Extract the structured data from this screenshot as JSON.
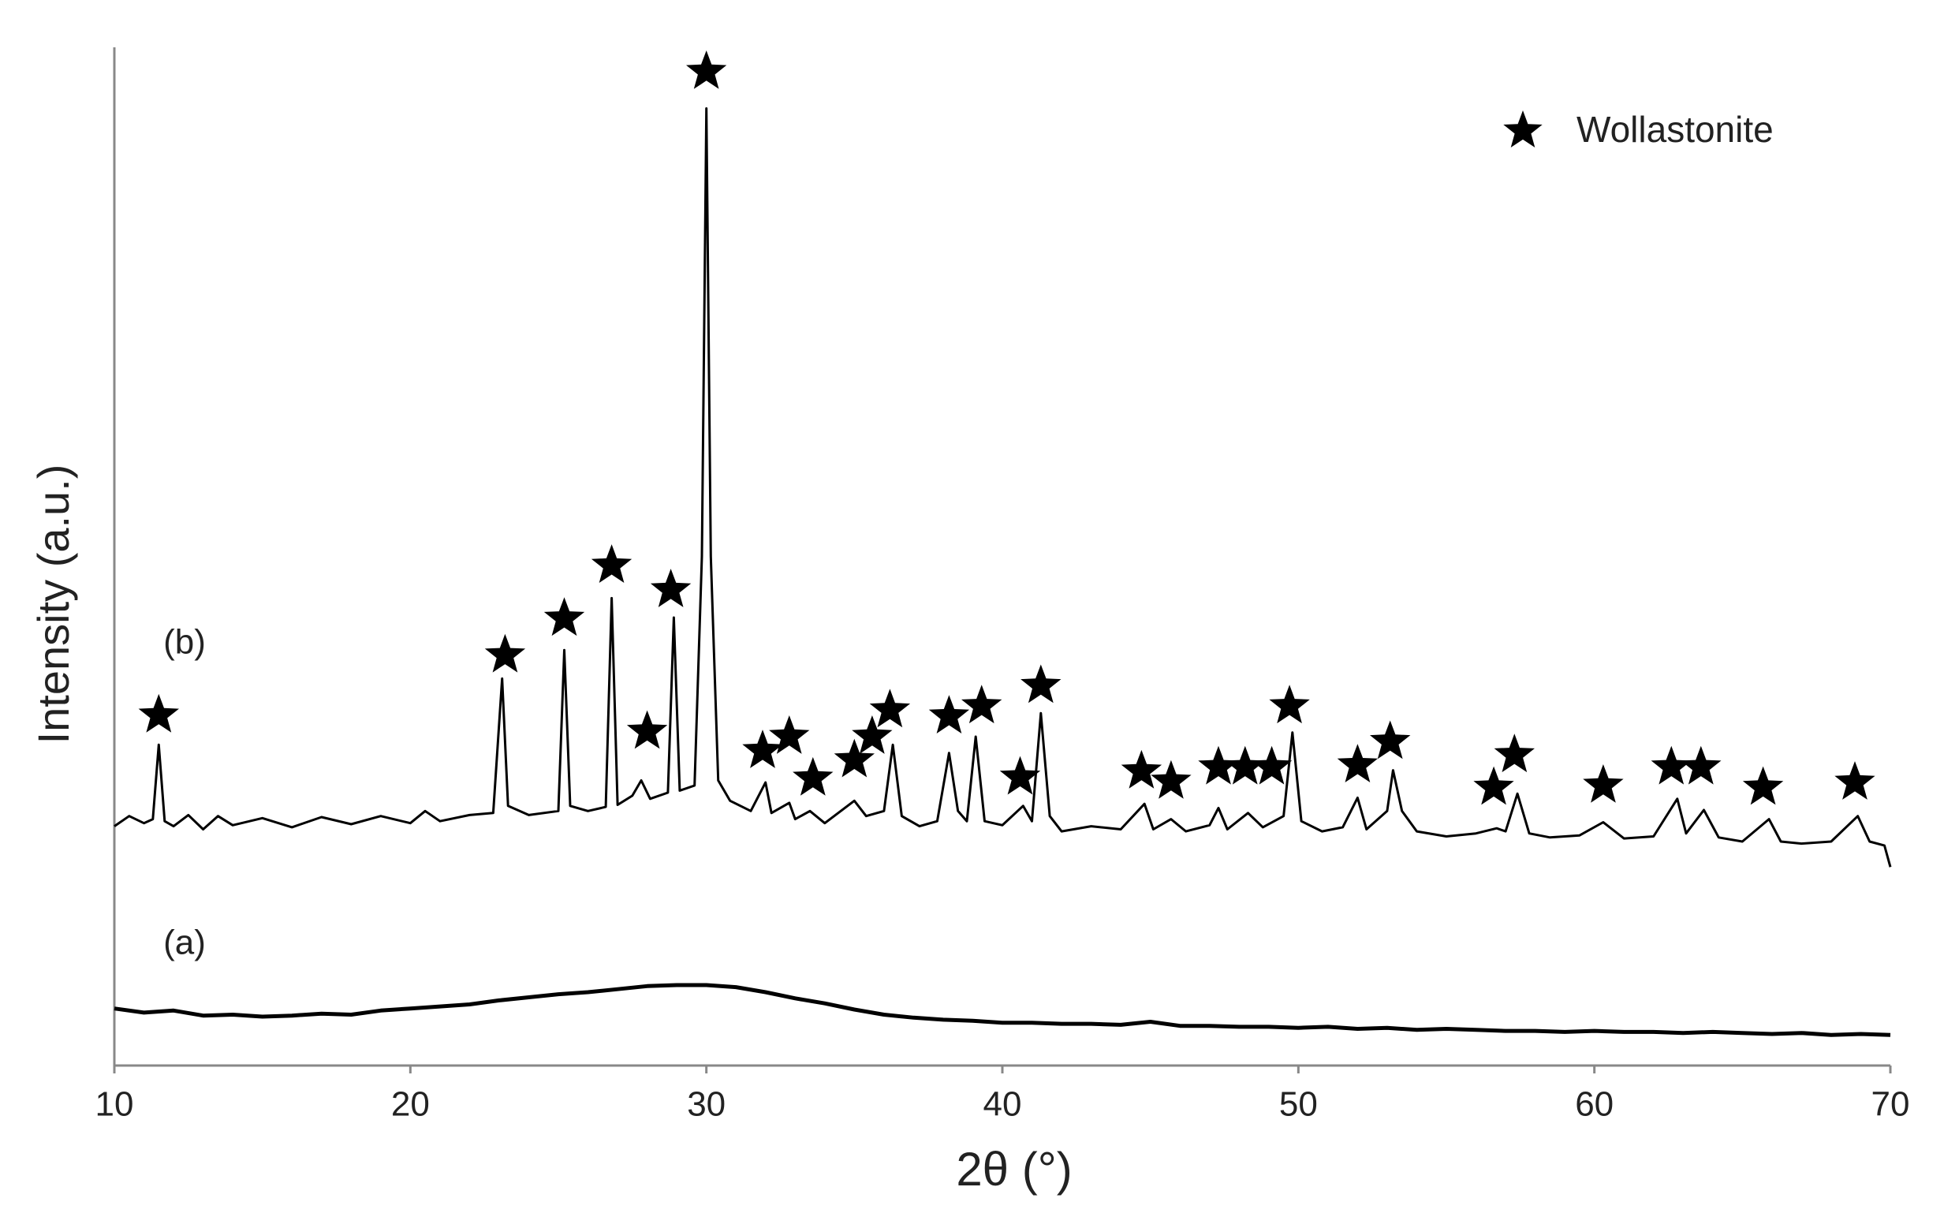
{
  "chart_data": {
    "type": "line",
    "xlabel": "2θ (°)",
    "ylabel": "Intensity  (a.u.)",
    "xlim": [
      10,
      70
    ],
    "xticks": [
      10,
      20,
      30,
      40,
      50,
      60,
      70
    ],
    "ylim": [
      0,
      100
    ],
    "legend": "upper right",
    "series": [
      {
        "name": "(a)",
        "color": "#000000",
        "x": [
          10,
          11,
          12,
          13,
          14,
          15,
          16,
          17,
          18,
          19,
          20,
          21,
          22,
          23,
          24,
          25,
          26,
          27,
          28,
          29,
          30,
          31,
          32,
          33,
          34,
          35,
          36,
          37,
          38,
          39,
          40,
          41,
          42,
          43,
          44,
          45,
          46,
          47,
          48,
          49,
          50,
          51,
          52,
          53,
          54,
          55,
          56,
          57,
          58,
          59,
          60,
          61,
          62,
          63,
          64,
          65,
          66,
          67,
          68,
          69,
          70
        ],
        "values": [
          5.6,
          5.2,
          5.4,
          4.9,
          5.0,
          4.8,
          4.9,
          5.1,
          5.0,
          5.4,
          5.6,
          5.8,
          6.0,
          6.4,
          6.7,
          7.0,
          7.2,
          7.5,
          7.8,
          7.9,
          7.9,
          7.7,
          7.2,
          6.6,
          6.1,
          5.5,
          5.0,
          4.7,
          4.5,
          4.4,
          4.2,
          4.2,
          4.1,
          4.1,
          4.0,
          4.3,
          3.9,
          3.9,
          3.8,
          3.8,
          3.7,
          3.8,
          3.6,
          3.7,
          3.5,
          3.6,
          3.5,
          3.4,
          3.4,
          3.3,
          3.4,
          3.3,
          3.3,
          3.2,
          3.3,
          3.2,
          3.1,
          3.2,
          3.0,
          3.1,
          3.0
        ]
      },
      {
        "name": "(b)",
        "color": "#000000",
        "x": [
          10,
          10.5,
          11,
          11.3,
          11.5,
          11.7,
          12,
          12.5,
          13,
          13.5,
          14,
          15,
          16,
          17,
          18,
          19,
          20,
          20.5,
          21,
          22,
          22.8,
          23.1,
          23.3,
          24,
          25,
          25.2,
          25.4,
          26,
          26.6,
          26.8,
          27,
          27.5,
          27.8,
          28.1,
          28.7,
          28.9,
          29.1,
          29.6,
          29.85,
          30.0,
          30.15,
          30.4,
          30.8,
          31.5,
          32.0,
          32.2,
          32.8,
          33.0,
          33.5,
          34,
          35.0,
          35.4,
          36.0,
          36.3,
          36.6,
          37.2,
          37.8,
          38.2,
          38.5,
          38.8,
          39.1,
          39.4,
          40,
          40.7,
          41.0,
          41.3,
          41.6,
          42,
          43,
          44,
          44.8,
          45.1,
          45.7,
          46.2,
          47,
          47.3,
          47.6,
          48.3,
          48.8,
          49.5,
          49.8,
          50.1,
          50.8,
          51.5,
          52.0,
          52.3,
          53.0,
          53.2,
          53.5,
          54,
          55,
          56,
          56.7,
          57.0,
          57.4,
          57.8,
          58.5,
          59.5,
          60.3,
          61,
          62,
          62.8,
          63.1,
          63.7,
          64.2,
          65,
          65.9,
          66.3,
          67,
          68,
          68.9,
          69.3,
          69.8,
          70
        ],
        "values": [
          23.5,
          24.5,
          23.8,
          24.2,
          31.5,
          24,
          23.5,
          24.6,
          23.2,
          24.5,
          23.6,
          24.3,
          23.4,
          24.4,
          23.7,
          24.5,
          23.8,
          25,
          24,
          24.6,
          24.8,
          38,
          25.5,
          24.6,
          25,
          40.8,
          25.5,
          25,
          25.4,
          45.9,
          25.6,
          26.5,
          28,
          26.2,
          26.8,
          44,
          27,
          27.5,
          50,
          94,
          50,
          28,
          26,
          25,
          27.8,
          24.8,
          25.8,
          24.2,
          25,
          23.8,
          26,
          24.5,
          25,
          31.5,
          24.5,
          23.5,
          24,
          30.7,
          25,
          24,
          32.3,
          24,
          23.6,
          25.5,
          24,
          34.6,
          24.5,
          23,
          23.5,
          23.2,
          25.7,
          23.2,
          24.2,
          23,
          23.6,
          25.3,
          23.2,
          24.8,
          23.4,
          24.5,
          32.7,
          24,
          23,
          23.4,
          26.3,
          23.2,
          25,
          29,
          25,
          23,
          22.5,
          22.8,
          23.3,
          23,
          26.7,
          22.8,
          22.4,
          22.6,
          23.9,
          22.3,
          22.5,
          26.2,
          22.8,
          25.1,
          22.4,
          22,
          24.2,
          22,
          21.8,
          22,
          24.5,
          22,
          21.6,
          19.5
        ]
      }
    ],
    "markers": {
      "name": "Wollastonite",
      "color": "#000000",
      "x": [
        11.5,
        23.2,
        25.2,
        26.8,
        28.0,
        28.8,
        30.0,
        31.9,
        32.8,
        33.6,
        35.0,
        35.6,
        36.2,
        38.2,
        39.3,
        40.6,
        41.3,
        44.7,
        45.7,
        47.3,
        48.2,
        49.1,
        49.7,
        52.0,
        53.1,
        56.6,
        57.3,
        60.3,
        62.6,
        63.6,
        65.7,
        68.8
      ],
      "y": [
        34.4,
        40.3,
        43.9,
        49.1,
        32.8,
        46.7,
        97.6,
        30.9,
        32.3,
        28.2,
        30.0,
        32.3,
        34.9,
        34.3,
        35.3,
        28.3,
        37.3,
        28.9,
        27.9,
        29.3,
        29.3,
        29.3,
        35.3,
        29.5,
        31.8,
        27.3,
        30.5,
        27.5,
        29.3,
        29.3,
        27.3,
        27.8
      ]
    }
  }
}
